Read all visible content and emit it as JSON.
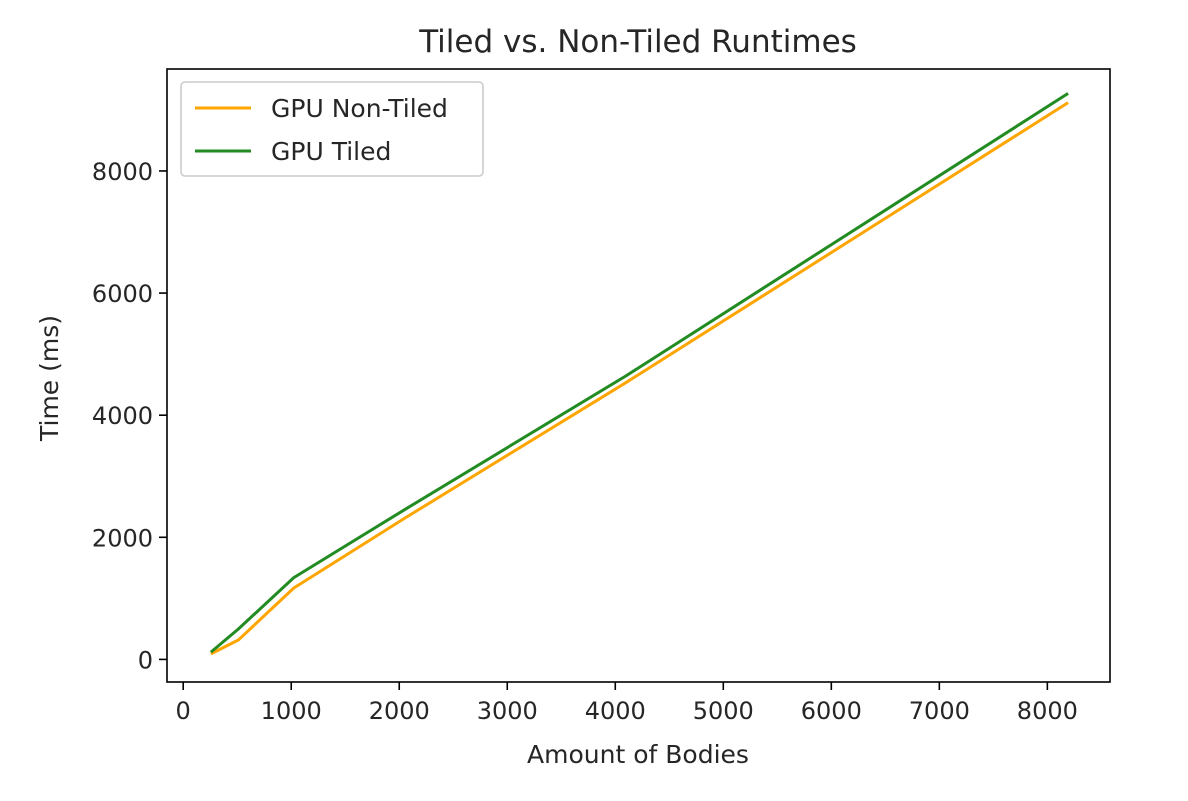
{
  "chart_data": {
    "type": "line",
    "title": "Tiled vs. Non-Tiled Runtimes",
    "xlabel": "Amount of Bodies",
    "ylabel": "Time (ms)",
    "xlim": [
      -150,
      8580
    ],
    "ylim": [
      -370,
      9670
    ],
    "xticks": [
      0,
      1000,
      2000,
      3000,
      4000,
      5000,
      6000,
      7000,
      8000
    ],
    "yticks": [
      0,
      2000,
      4000,
      6000,
      8000
    ],
    "grid": false,
    "legend_position": "upper left",
    "series": [
      {
        "name": "GPU Non-Tiled",
        "color": "#ffa500",
        "x": [
          256,
          512,
          1024,
          2048,
          4096,
          8192
        ],
        "y": [
          90,
          320,
          1170,
          2310,
          4530,
          9120
        ]
      },
      {
        "name": "GPU Tiled",
        "color": "#228b22",
        "x": [
          256,
          512,
          1024,
          2048,
          4096,
          8192
        ],
        "y": [
          120,
          500,
          1340,
          2450,
          4640,
          9270
        ]
      }
    ]
  }
}
